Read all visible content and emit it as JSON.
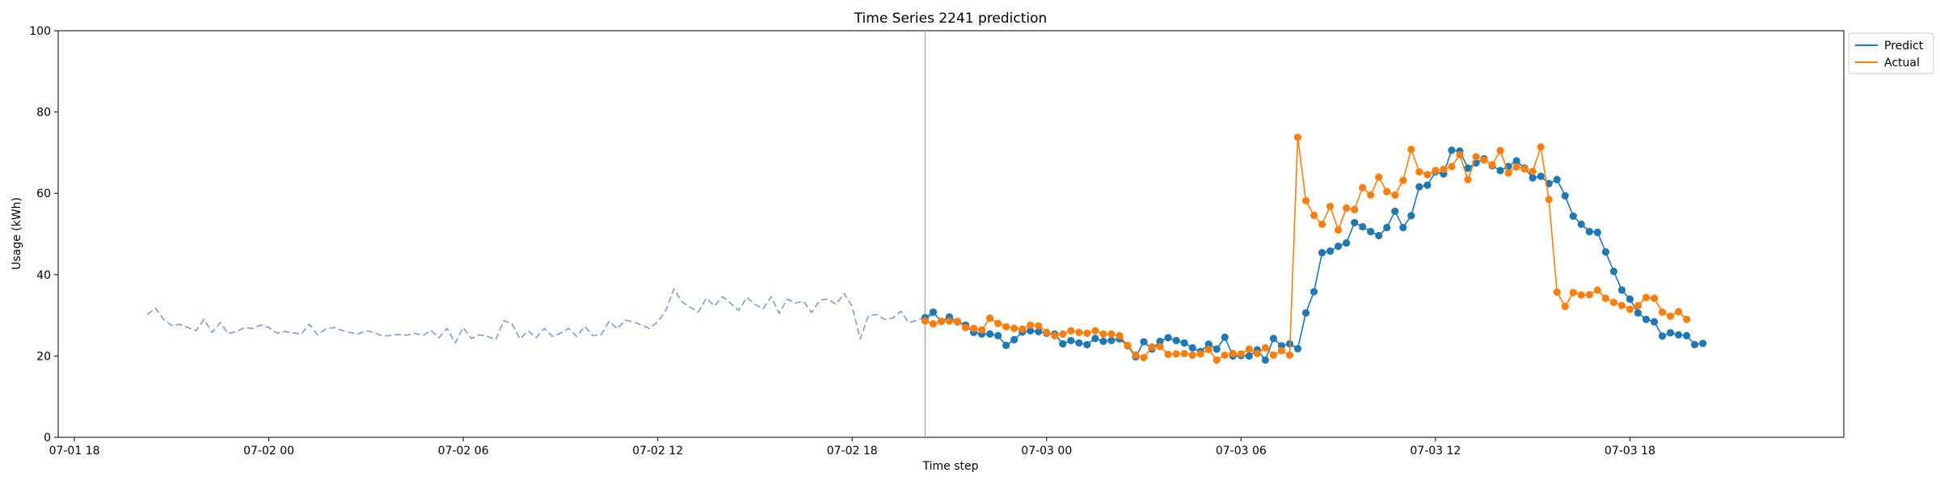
{
  "chart_data": {
    "type": "line",
    "title": "Time Series 2241 prediction",
    "xlabel": "Time step",
    "ylabel": "Usage (kWh)",
    "ylim": [
      0,
      100
    ],
    "yticks": [
      0,
      20,
      40,
      60,
      80,
      100
    ],
    "x_unit": "hours since 07-01 18:00",
    "xlim": [
      -0.5,
      54.6
    ],
    "xticks": [
      {
        "x": 0,
        "label": "07-01 18"
      },
      {
        "x": 6,
        "label": "07-02 00"
      },
      {
        "x": 12,
        "label": "07-02 06"
      },
      {
        "x": 18,
        "label": "07-02 12"
      },
      {
        "x": 24,
        "label": "07-02 18"
      },
      {
        "x": 30,
        "label": "07-03 00"
      },
      {
        "x": 36,
        "label": "07-03 06"
      },
      {
        "x": 42,
        "label": "07-03 12"
      },
      {
        "x": 48,
        "label": "07-03 18"
      }
    ],
    "step_hours": 0.25,
    "vline_x": 26.25,
    "grid": false,
    "legend_position": "upper-right-outside",
    "series": [
      {
        "name": "",
        "role": "history",
        "color": "#7c9cd4",
        "style": "dashed",
        "x_start": 2.25,
        "values": [
          30.2,
          31.8,
          29.0,
          27.5,
          27.8,
          27.0,
          26.2,
          29.0,
          25.8,
          28.2,
          25.5,
          26.0,
          27.0,
          26.8,
          27.6,
          27.0,
          25.6,
          26.0,
          25.7,
          25.4,
          27.8,
          25.2,
          26.6,
          27.0,
          26.3,
          25.8,
          25.4,
          26.2,
          25.8,
          24.9,
          25.0,
          25.3,
          25.1,
          25.6,
          25.0,
          26.3,
          24.5,
          26.8,
          23.2,
          27.0,
          24.3,
          25.2,
          24.8,
          24.0,
          28.7,
          28.0,
          24.2,
          26.2,
          24.5,
          26.8,
          24.8,
          25.6,
          26.8,
          24.8,
          27.3,
          25.0,
          25.2,
          28.5,
          26.7,
          28.8,
          28.4,
          27.6,
          26.8,
          28.4,
          31.2,
          36.5,
          33.3,
          32.0,
          30.8,
          34.2,
          32.3,
          34.6,
          32.9,
          31.2,
          34.4,
          32.7,
          31.6,
          34.6,
          30.5,
          34.0,
          33.0,
          33.5,
          30.7,
          33.7,
          34.0,
          32.7,
          35.4,
          32.2,
          24.2,
          29.9,
          30.2,
          29.0,
          29.3,
          31.0,
          28.2,
          28.8,
          29.5,
          30.0
        ]
      },
      {
        "name": "Predict",
        "role": "predict",
        "color": "#1f77b4",
        "style": "solid-markers",
        "x_start": 26.25,
        "values": [
          29.4,
          30.8,
          28.5,
          29.6,
          28.4,
          27.6,
          25.8,
          25.4,
          25.4,
          25.0,
          22.6,
          24.0,
          25.9,
          26.2,
          26.0,
          25.6,
          25.4,
          23.0,
          23.8,
          23.2,
          22.8,
          24.3,
          23.6,
          23.8,
          24.2,
          22.5,
          19.8,
          23.5,
          21.7,
          23.6,
          24.5,
          23.8,
          23.2,
          22.0,
          21.1,
          22.9,
          21.7,
          24.6,
          20.0,
          20.1,
          20.0,
          21.5,
          19.0,
          24.3,
          22.5,
          23.0,
          21.8,
          30.6,
          35.8,
          45.4,
          45.8,
          47.0,
          47.8,
          52.8,
          51.8,
          50.6,
          49.6,
          51.6,
          55.6,
          51.6,
          54.5,
          61.6,
          62.0,
          65.3,
          64.8,
          70.6,
          70.4,
          66.2,
          67.5,
          68.5,
          66.8,
          65.6,
          66.6,
          68.0,
          66.2,
          63.8,
          64.2,
          62.4,
          63.4,
          59.4,
          54.4,
          52.4,
          50.6,
          50.4,
          45.6,
          40.8,
          36.2,
          34.0,
          30.6,
          29.0,
          28.4,
          24.9,
          25.7,
          25.2,
          25.0,
          22.8,
          23.1
        ]
      },
      {
        "name": "Actual",
        "role": "actual",
        "color": "#ff7f0e",
        "style": "solid-markers",
        "x_start": 26.25,
        "values": [
          28.6,
          27.9,
          28.5,
          28.6,
          28.5,
          27.0,
          26.8,
          26.4,
          29.3,
          28.0,
          27.2,
          26.8,
          26.6,
          27.6,
          27.4,
          25.8,
          25.0,
          25.4,
          26.2,
          25.8,
          25.6,
          26.2,
          25.4,
          25.4,
          25.0,
          22.6,
          20.2,
          19.6,
          22.2,
          22.3,
          20.4,
          20.5,
          20.6,
          20.2,
          20.5,
          21.6,
          19.0,
          20.2,
          20.6,
          20.5,
          21.7,
          20.6,
          22.0,
          20.2,
          21.3,
          20.2,
          73.8,
          58.2,
          54.6,
          52.4,
          56.8,
          51.0,
          56.4,
          56.0,
          61.4,
          59.6,
          64.0,
          60.4,
          59.6,
          63.2,
          70.8,
          65.3,
          64.6,
          65.6,
          65.9,
          66.6,
          69.5,
          63.4,
          69.0,
          68.2,
          67.0,
          70.5,
          65.0,
          66.5,
          66.0,
          65.4,
          71.4,
          58.5,
          35.7,
          32.2,
          35.6,
          35.0,
          35.1,
          36.2,
          34.2,
          33.2,
          32.4,
          31.5,
          32.4,
          34.4,
          34.2,
          30.8,
          29.8,
          30.9,
          29.0
        ]
      }
    ]
  }
}
